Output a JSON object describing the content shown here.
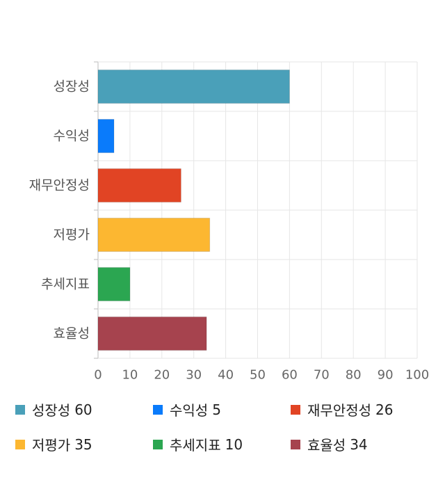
{
  "chart_data": {
    "type": "bar",
    "orientation": "horizontal",
    "categories": [
      "성장성",
      "수익성",
      "재무안정성",
      "저평가",
      "추세지표",
      "효율성"
    ],
    "values": [
      60,
      5,
      26,
      35,
      10,
      34
    ],
    "colors": [
      "#4aa0b9",
      "#0a7bfb",
      "#e14424",
      "#fcb731",
      "#2ba651",
      "#a6434e"
    ],
    "xlim": [
      0,
      100
    ],
    "xticks": [
      "0",
      "10",
      "20",
      "30",
      "40",
      "50",
      "60",
      "70",
      "80",
      "90",
      "100"
    ],
    "grid": true,
    "legend_position": "bottom"
  },
  "legend": [
    {
      "label": "성장성",
      "value": "60"
    },
    {
      "label": "수익성",
      "value": "5"
    },
    {
      "label": "재무안정성",
      "value": "26"
    },
    {
      "label": "저평가",
      "value": "35"
    },
    {
      "label": "추세지표",
      "value": "10"
    },
    {
      "label": "효율성",
      "value": "34"
    }
  ]
}
